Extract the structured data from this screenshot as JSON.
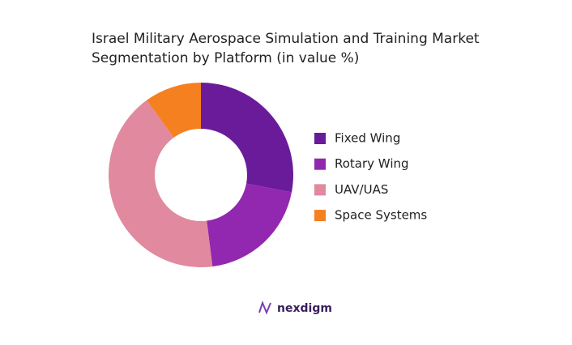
{
  "chart_data": {
    "type": "donut",
    "title": [
      "Israel Military Aerospace Simulation and Training Market",
      "Segmentation by Platform (in value %)"
    ],
    "categories": [
      "Fixed Wing",
      "Rotary Wing",
      "UAV/UAS",
      "Space Systems"
    ],
    "values": [
      28,
      20,
      42,
      10
    ],
    "colors": [
      "#6a1b9a",
      "#9227b0",
      "#e0899f",
      "#f5801f"
    ],
    "legend": "right"
  },
  "brand": "nexdigm"
}
